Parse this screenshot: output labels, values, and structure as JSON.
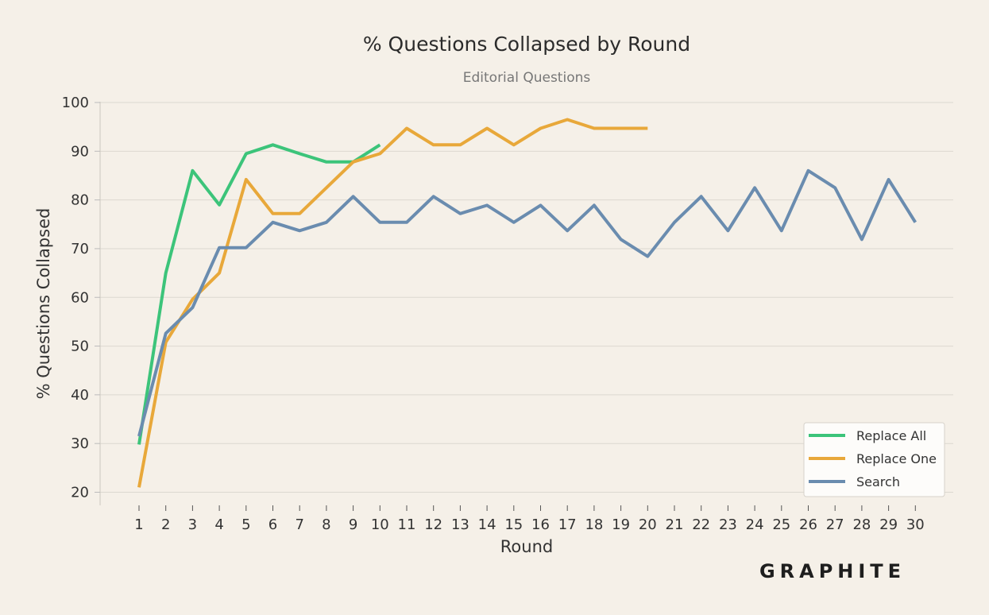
{
  "chart_data": {
    "type": "line",
    "title": "% Questions Collapsed by Round",
    "subtitle": "Editorial Questions",
    "xlabel": "Round",
    "ylabel": "% Questions Collapsed",
    "ylim": [
      20,
      100
    ],
    "yticks": [
      20,
      30,
      40,
      50,
      60,
      70,
      80,
      90,
      100
    ],
    "x": [
      1,
      2,
      3,
      4,
      5,
      6,
      7,
      8,
      9,
      10,
      11,
      12,
      13,
      14,
      15,
      16,
      17,
      18,
      19,
      20,
      21,
      22,
      23,
      24,
      25,
      26,
      27,
      28,
      29,
      30
    ],
    "grid": "horizontal",
    "legend_position": "bottom-right",
    "series": [
      {
        "name": "Replace All",
        "color": "#3cc47a",
        "x": [
          1,
          2,
          3,
          4,
          5,
          6,
          7,
          8,
          9,
          10
        ],
        "values": [
          29.8,
          65,
          86,
          79,
          89.5,
          91.3,
          89.5,
          87.8,
          87.8,
          91.3
        ]
      },
      {
        "name": "Replace One",
        "color": "#e8a83a",
        "x": [
          1,
          2,
          3,
          4,
          5,
          6,
          7,
          8,
          9,
          10,
          11,
          12,
          13,
          14,
          15,
          16,
          17,
          18,
          19,
          20
        ],
        "values": [
          21,
          50.8,
          59.6,
          65,
          84.2,
          77.2,
          77.2,
          82.5,
          87.8,
          89.5,
          94.7,
          91.3,
          91.3,
          94.7,
          91.3,
          94.7,
          96.5,
          94.7,
          94.7,
          94.7
        ]
      },
      {
        "name": "Search",
        "color": "#6a8caf",
        "x": [
          1,
          2,
          3,
          4,
          5,
          6,
          7,
          8,
          9,
          10,
          11,
          12,
          13,
          14,
          15,
          16,
          17,
          18,
          19,
          20,
          21,
          22,
          23,
          24,
          25,
          26,
          27,
          28,
          29,
          30
        ],
        "values": [
          31.5,
          52.6,
          57.9,
          70.2,
          70.2,
          75.4,
          73.7,
          75.4,
          80.7,
          75.4,
          75.4,
          80.7,
          77.2,
          78.9,
          75.4,
          78.9,
          73.7,
          78.9,
          71.9,
          68.4,
          75.4,
          80.7,
          73.7,
          82.5,
          73.7,
          86,
          82.5,
          71.9,
          84.2,
          75.4
        ]
      }
    ]
  },
  "brand": {
    "wordmark": "GRAPHITE"
  }
}
